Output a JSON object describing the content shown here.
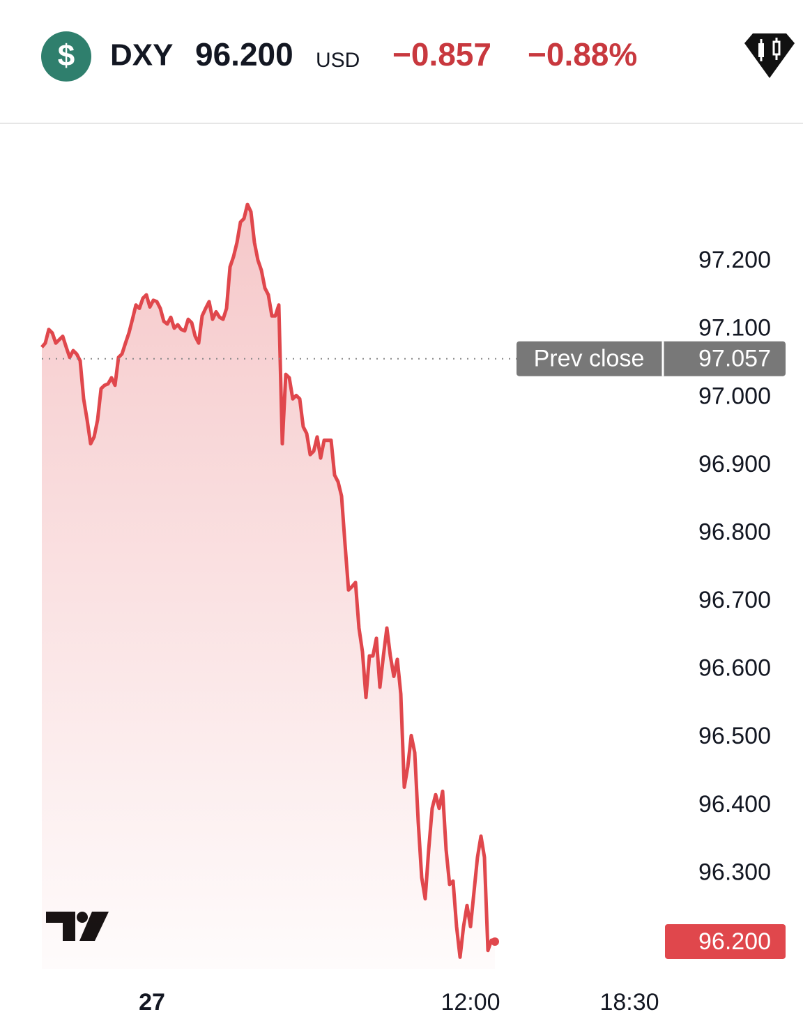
{
  "header": {
    "symbol": "DXY",
    "price": "96.200",
    "currency": "USD",
    "change": "−0.857",
    "change_percent": "−0.88%"
  },
  "chart_data": {
    "type": "area",
    "color": "#e0474c",
    "values": [
      97.074,
      97.08,
      97.1,
      97.095,
      97.08,
      97.085,
      97.09,
      97.074,
      97.059,
      97.069,
      97.064,
      97.054,
      96.998,
      96.967,
      96.932,
      96.942,
      96.967,
      97.013,
      97.018,
      97.02,
      97.029,
      97.018,
      97.059,
      97.064,
      97.08,
      97.095,
      97.115,
      97.136,
      97.131,
      97.146,
      97.151,
      97.133,
      97.143,
      97.141,
      97.131,
      97.112,
      97.108,
      97.118,
      97.102,
      97.107,
      97.1,
      97.098,
      97.115,
      97.11,
      97.09,
      97.08,
      97.12,
      97.131,
      97.141,
      97.115,
      97.126,
      97.118,
      97.115,
      97.131,
      97.192,
      97.207,
      97.228,
      97.258,
      97.263,
      97.284,
      97.273,
      97.228,
      97.202,
      97.187,
      97.161,
      97.151,
      97.12,
      97.12,
      97.136,
      96.932,
      97.034,
      97.029,
      96.998,
      97.003,
      96.998,
      96.957,
      96.947,
      96.916,
      96.921,
      96.942,
      96.911,
      96.937,
      96.937,
      96.937,
      96.886,
      96.876,
      96.855,
      96.784,
      96.717,
      96.722,
      96.728,
      96.661,
      96.626,
      96.559,
      96.62,
      96.62,
      96.646,
      96.574,
      96.62,
      96.661,
      96.62,
      96.59,
      96.615,
      96.564,
      96.427,
      96.457,
      96.503,
      96.478,
      96.376,
      96.294,
      96.263,
      96.335,
      96.396,
      96.416,
      96.396,
      96.421,
      96.335,
      96.284,
      96.289,
      96.222,
      96.177,
      96.222,
      96.253,
      96.222,
      96.273,
      96.324,
      96.355,
      96.324,
      96.187,
      96.202,
      96.2
    ],
    "xlim": [
      0,
      218.4
    ],
    "xticks": [
      {
        "value": 31.6,
        "label": "27"
      },
      {
        "value": 123,
        "label": "12:00"
      },
      {
        "value": 168.6,
        "label": "18:30"
      }
    ],
    "ylim": [
      96.16,
      97.4
    ],
    "yticks": [
      {
        "value": 96.3,
        "label": "96.300"
      },
      {
        "value": 96.4,
        "label": "96.400"
      },
      {
        "value": 96.5,
        "label": "96.500"
      },
      {
        "value": 96.6,
        "label": "96.600"
      },
      {
        "value": 96.7,
        "label": "96.700"
      },
      {
        "value": 96.8,
        "label": "96.800"
      },
      {
        "value": 96.9,
        "label": "96.900"
      },
      {
        "value": 97.0,
        "label": "97.000"
      },
      {
        "value": 97.1,
        "label": "97.100"
      },
      {
        "value": 97.2,
        "label": "97.200"
      }
    ],
    "prev_close": {
      "name": "Prev close",
      "value": 97.057,
      "label": "97.057"
    },
    "last_price": {
      "value": 96.2,
      "label": "96.200"
    }
  }
}
